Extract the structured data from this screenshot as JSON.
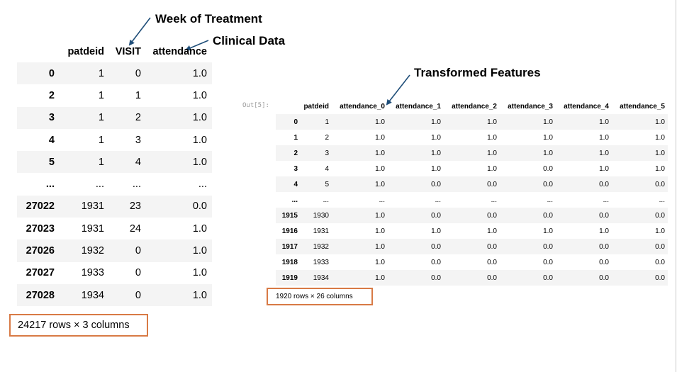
{
  "annotations": {
    "week_of_treatment": "Week of Treatment",
    "clinical_data": "Clinical Data",
    "transformed_features": "Transformed Features"
  },
  "left_table": {
    "columns": [
      "",
      "patdeid",
      "VISIT",
      "attendance"
    ],
    "rows": [
      [
        "0",
        "1",
        "0",
        "1.0"
      ],
      [
        "2",
        "1",
        "1",
        "1.0"
      ],
      [
        "3",
        "1",
        "2",
        "1.0"
      ],
      [
        "4",
        "1",
        "3",
        "1.0"
      ],
      [
        "5",
        "1",
        "4",
        "1.0"
      ],
      [
        "...",
        "...",
        "...",
        "..."
      ],
      [
        "27022",
        "1931",
        "23",
        "0.0"
      ],
      [
        "27023",
        "1931",
        "24",
        "1.0"
      ],
      [
        "27026",
        "1932",
        "0",
        "1.0"
      ],
      [
        "27027",
        "1933",
        "0",
        "1.0"
      ],
      [
        "27028",
        "1934",
        "0",
        "1.0"
      ]
    ],
    "summary": "24217 rows × 3 columns"
  },
  "out_prompt": "Out[5]:",
  "right_table": {
    "columns": [
      "",
      "patdeid",
      "attendance_0",
      "attendance_1",
      "attendance_2",
      "attendance_3",
      "attendance_4",
      "attendance_5"
    ],
    "rows": [
      [
        "0",
        "1",
        "1.0",
        "1.0",
        "1.0",
        "1.0",
        "1.0",
        "1.0"
      ],
      [
        "1",
        "2",
        "1.0",
        "1.0",
        "1.0",
        "1.0",
        "1.0",
        "1.0"
      ],
      [
        "2",
        "3",
        "1.0",
        "1.0",
        "1.0",
        "1.0",
        "1.0",
        "1.0"
      ],
      [
        "3",
        "4",
        "1.0",
        "1.0",
        "1.0",
        "0.0",
        "1.0",
        "1.0"
      ],
      [
        "4",
        "5",
        "1.0",
        "0.0",
        "0.0",
        "0.0",
        "0.0",
        "0.0"
      ],
      [
        "...",
        "...",
        "...",
        "...",
        "...",
        "...",
        "...",
        "..."
      ],
      [
        "1915",
        "1930",
        "1.0",
        "0.0",
        "0.0",
        "0.0",
        "0.0",
        "0.0"
      ],
      [
        "1916",
        "1931",
        "1.0",
        "1.0",
        "1.0",
        "1.0",
        "1.0",
        "1.0"
      ],
      [
        "1917",
        "1932",
        "1.0",
        "0.0",
        "0.0",
        "0.0",
        "0.0",
        "0.0"
      ],
      [
        "1918",
        "1933",
        "1.0",
        "0.0",
        "0.0",
        "0.0",
        "0.0",
        "0.0"
      ],
      [
        "1919",
        "1934",
        "1.0",
        "0.0",
        "0.0",
        "0.0",
        "0.0",
        "0.0"
      ]
    ],
    "summary": "1920 rows × 26 columns"
  },
  "colors": {
    "highlight_box": "#d87a45",
    "arrow": "#1f4e79",
    "stripe": "#f4f4f4"
  }
}
